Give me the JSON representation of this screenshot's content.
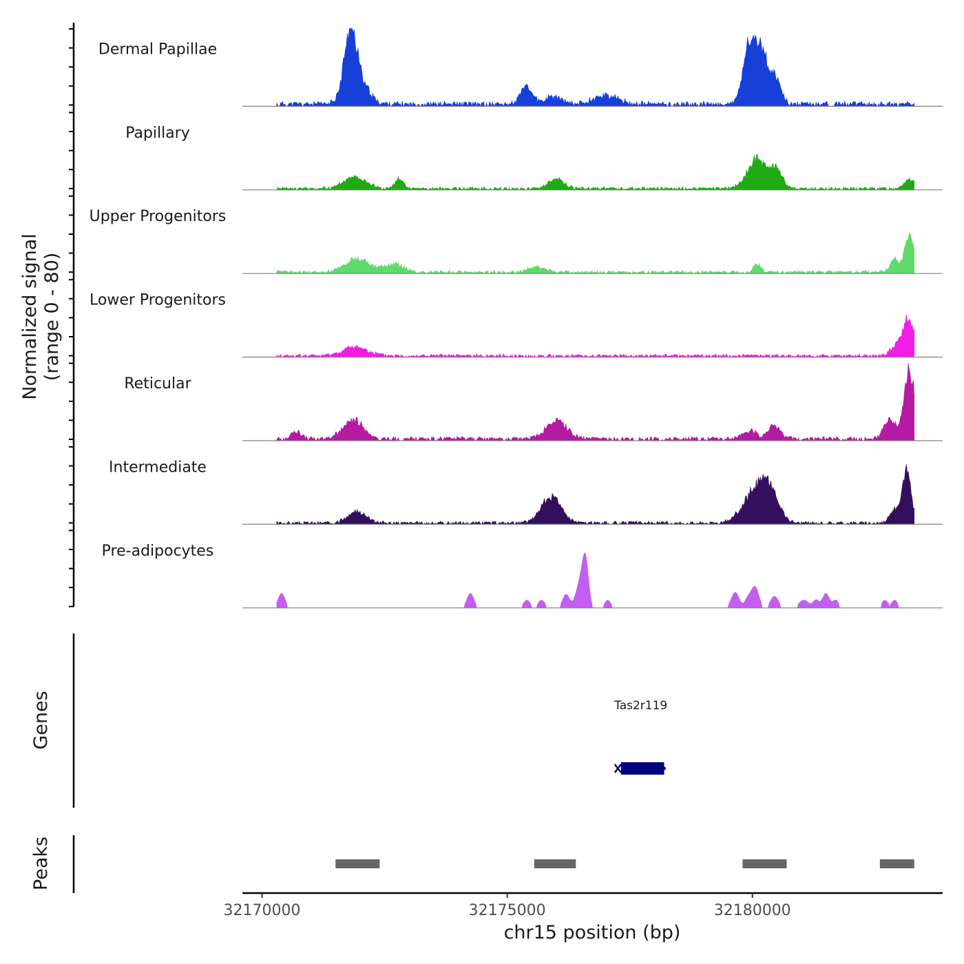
{
  "chart_data": {
    "type": "area",
    "title": "",
    "ylabel_line1": "Normalized signal",
    "ylabel_line2": "(range 0 - 80)",
    "ylim": [
      0,
      80
    ],
    "xlabel": "chr15 position (bp)",
    "xlim": [
      32169600,
      32183880
    ],
    "x_ticks": [
      32170000,
      32175000,
      32180000
    ],
    "x_tick_labels": [
      "32170000",
      "32175000",
      "32180000"
    ],
    "signal_range": [
      32170300,
      32183300
    ],
    "tracks": [
      {
        "name": "Dermal Papillae",
        "color": "#1740d9",
        "peaks": [
          [
            32171800,
            60,
            130
          ],
          [
            32171950,
            25,
            200
          ],
          [
            32175400,
            18,
            120
          ],
          [
            32175950,
            8,
            150
          ],
          [
            32179900,
            45,
            110
          ],
          [
            32180150,
            62,
            160
          ],
          [
            32180500,
            22,
            100
          ],
          [
            32177000,
            9,
            250
          ]
        ],
        "noise": 5,
        "seed": 11
      },
      {
        "name": "Papillary",
        "color": "#1fab13",
        "peaks": [
          [
            32171900,
            13,
            220
          ],
          [
            32172800,
            10,
            80
          ],
          [
            32176000,
            10,
            160
          ],
          [
            32180100,
            30,
            200
          ],
          [
            32180500,
            18,
            120
          ],
          [
            32183200,
            9,
            120
          ]
        ],
        "noise": 3,
        "seed": 23
      },
      {
        "name": "Upper Progenitors",
        "color": "#5fdb6b",
        "peaks": [
          [
            32171950,
            14,
            250
          ],
          [
            32172700,
            8,
            200
          ],
          [
            32175600,
            6,
            160
          ],
          [
            32180100,
            8,
            80
          ],
          [
            32182900,
            14,
            80
          ],
          [
            32183200,
            40,
            90
          ]
        ],
        "noise": 3,
        "seed": 37
      },
      {
        "name": "Lower Progenitors",
        "color": "#f01ee6",
        "peaks": [
          [
            32171900,
            9,
            250
          ],
          [
            32183200,
            35,
            110
          ],
          [
            32183000,
            12,
            150
          ]
        ],
        "noise": 3,
        "seed": 41
      },
      {
        "name": "Reticular",
        "color": "#b51aa3",
        "peaks": [
          [
            32171850,
            20,
            200
          ],
          [
            32170700,
            8,
            100
          ],
          [
            32176000,
            18,
            220
          ],
          [
            32180450,
            15,
            120
          ],
          [
            32179950,
            8,
            150
          ],
          [
            32183200,
            70,
            110
          ],
          [
            32182800,
            18,
            120
          ]
        ],
        "noise": 4,
        "seed": 53
      },
      {
        "name": "Intermediate",
        "color": "#33105e",
        "peaks": [
          [
            32171950,
            11,
            200
          ],
          [
            32175900,
            28,
            200
          ],
          [
            32180050,
            30,
            250
          ],
          [
            32180350,
            28,
            180
          ],
          [
            32183150,
            52,
            90
          ],
          [
            32182900,
            14,
            100
          ]
        ],
        "noise": 3,
        "seed": 67
      },
      {
        "name": "Pre-adipocytes",
        "color": "#c45ef0",
        "peaks": [
          [
            32170400,
            15,
            70
          ],
          [
            32174250,
            15,
            70
          ],
          [
            32175400,
            8,
            70
          ],
          [
            32175700,
            8,
            70
          ],
          [
            32176200,
            14,
            70
          ],
          [
            32176500,
            28,
            90
          ],
          [
            32176600,
            40,
            60
          ],
          [
            32177050,
            8,
            60
          ],
          [
            32179650,
            16,
            80
          ],
          [
            32180050,
            22,
            80
          ],
          [
            32179900,
            8,
            60
          ],
          [
            32180450,
            12,
            80
          ],
          [
            32181050,
            8,
            100
          ],
          [
            32181300,
            8,
            60
          ],
          [
            32181500,
            15,
            70
          ],
          [
            32181700,
            8,
            60
          ],
          [
            32182700,
            8,
            60
          ],
          [
            32182900,
            8,
            60
          ]
        ],
        "noise": 0,
        "seed": 79
      }
    ],
    "genes_label": "Genes",
    "genes": [
      {
        "name": "Tas2r119",
        "start": 32177250,
        "end": 32178200,
        "color": "#000080"
      }
    ],
    "peaks_label": "Peaks",
    "peak_regions": [
      [
        32171500,
        32172400
      ],
      [
        32175550,
        32176400
      ],
      [
        32179800,
        32180700
      ],
      [
        32182600,
        32183300
      ]
    ],
    "peak_color": "#666666"
  }
}
